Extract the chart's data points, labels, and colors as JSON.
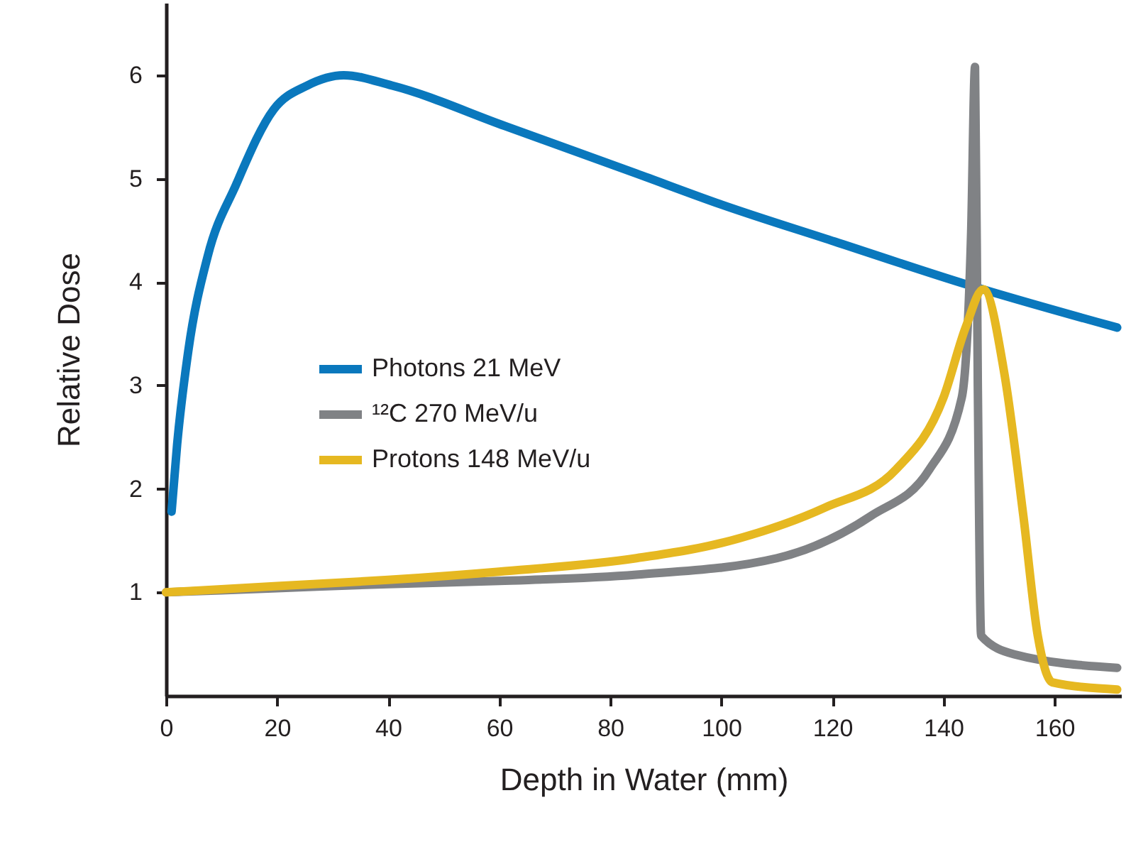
{
  "chart_data": {
    "type": "line",
    "xlabel": "Depth in Water (mm)",
    "ylabel": "Relative Dose",
    "xlim": [
      0,
      172
    ],
    "ylim": [
      0,
      6.7
    ],
    "xticks": [
      0,
      20,
      40,
      60,
      80,
      100,
      120,
      140,
      160
    ],
    "yticks": [
      1,
      2,
      3,
      4,
      5,
      6
    ],
    "grid": false,
    "legend": "left",
    "marker": "none",
    "line_style": "solid",
    "series": [
      {
        "name": "Photons 21 MeV",
        "color": "#0a78bd",
        "x": [
          1,
          2,
          4,
          7.5,
          12.6,
          19.4,
          25.4,
          32,
          40.7,
          61,
          84.7,
          100,
          120.5,
          144,
          171.3
        ],
        "values": [
          1.78,
          2.43,
          3.33,
          4.25,
          4.94,
          5.67,
          5.9,
          6.0,
          5.9,
          5.51,
          5.05,
          4.75,
          4.39,
          3.98,
          3.56
        ]
      },
      {
        "name": "¹²C 270 MeV/u",
        "color": "#808285",
        "x": [
          0,
          20,
          40,
          60,
          84.7,
          110,
          127,
          137.5,
          143.3,
          145,
          145.7,
          146.2,
          146.8,
          152.8,
          171.3
        ],
        "values": [
          1.0,
          1.04,
          1.08,
          1.11,
          1.17,
          1.33,
          1.74,
          2.19,
          2.88,
          4.48,
          6.08,
          3.0,
          0.58,
          0.4,
          0.27
        ]
      },
      {
        "name": "Protons 148 MeV/u",
        "color": "#e6b821",
        "x": [
          0,
          20,
          40,
          60,
          84.7,
          101.7,
          118.7,
          131.5,
          140,
          144,
          147.2,
          151,
          154.4,
          157,
          159.6,
          171.3
        ],
        "values": [
          1.0,
          1.06,
          1.12,
          1.2,
          1.33,
          1.5,
          1.82,
          2.19,
          2.88,
          3.56,
          3.93,
          3.11,
          1.74,
          0.58,
          0.13,
          0.06
        ]
      }
    ]
  }
}
